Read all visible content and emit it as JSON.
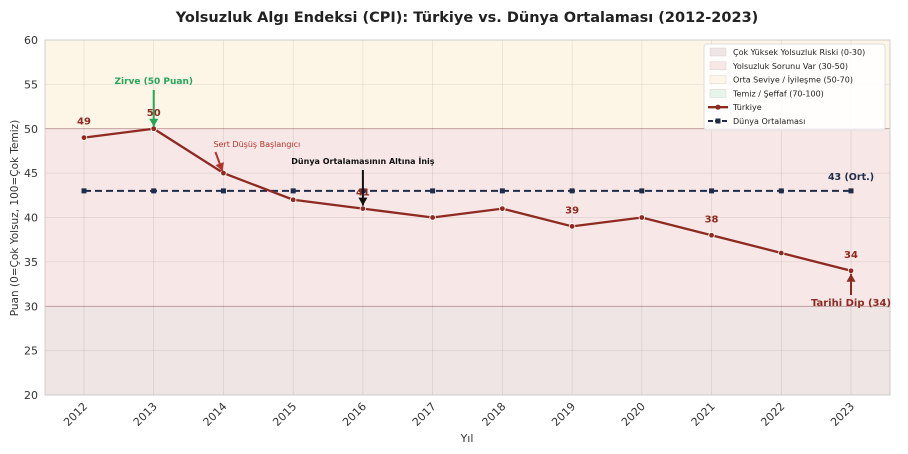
{
  "chart_data": {
    "type": "line",
    "title": "Yolsuzluk Algı Endeksi (CPI): Türkiye vs. Dünya Ortalaması (2012-2023)",
    "xlabel": "Yıl",
    "ylabel": "Puan (0=Çok Yolsuz, 100=Çok Temiz)",
    "ylim": [
      20,
      60
    ],
    "yticks": [
      20,
      25,
      30,
      35,
      40,
      45,
      50,
      55,
      60
    ],
    "x": [
      "2012",
      "2013",
      "2014",
      "2015",
      "2016",
      "2017",
      "2018",
      "2019",
      "2020",
      "2021",
      "2022",
      "2023"
    ],
    "grid": true,
    "legend_position": "top-right",
    "bands": [
      {
        "label": "Çok Yüksek Yolsuzluk Riski (0-30)",
        "from": 0,
        "to": 30,
        "color": "#efe5e5"
      },
      {
        "label": "Yolsuzluk Sorunu Var (30-50)",
        "from": 30,
        "to": 50,
        "color": "#f7e7e7"
      },
      {
        "label": "Orta Seviye / İyileşme (50-70)",
        "from": 50,
        "to": 70,
        "color": "#fdf6e6"
      },
      {
        "label": "Temiz / Şeffaf (70-100)",
        "from": 70,
        "to": 100,
        "color": "#e6f4ea"
      }
    ],
    "series": [
      {
        "name": "Türkiye",
        "values": [
          49,
          50,
          45,
          42,
          41,
          40,
          41,
          39,
          40,
          38,
          36,
          34
        ],
        "color": "#8e2a22"
      },
      {
        "name": "Dünya Ortalaması",
        "values": [
          43,
          43,
          43,
          43,
          43,
          43,
          43,
          43,
          43,
          43,
          43,
          43
        ],
        "color": "#1f2d4a"
      }
    ],
    "data_labels": [
      {
        "text": "49",
        "index": 0,
        "value": 49,
        "color": "#8e2a22"
      },
      {
        "text": "50",
        "index": 1,
        "value": 50,
        "color": "#8e2a22"
      },
      {
        "text": "41",
        "index": 4,
        "value": 41,
        "color": "#8e2a22"
      },
      {
        "text": "39",
        "index": 7,
        "value": 39,
        "color": "#8e2a22"
      },
      {
        "text": "38",
        "index": 9,
        "value": 38,
        "color": "#8e2a22"
      },
      {
        "text": "34",
        "index": 11,
        "value": 34,
        "color": "#8e2a22"
      },
      {
        "text": "43 (Ort.)",
        "index": 11,
        "value": 43,
        "color": "#1f2d4a"
      }
    ],
    "annotations": [
      {
        "text": "Zirve (50 Puan)",
        "index": 1,
        "value": 50,
        "color": "#27a65a"
      },
      {
        "text": "Sert Düşüş Başlangıcı",
        "index": 2,
        "value": 45,
        "color": "#b5342a"
      },
      {
        "text": "Dünya Ortalamasının Altına İniş",
        "index": 4,
        "value": 41,
        "color": "#111111"
      },
      {
        "text": "Tarihi Dip (34)",
        "index": 11,
        "value": 34,
        "color": "#8e2a22"
      }
    ]
  }
}
